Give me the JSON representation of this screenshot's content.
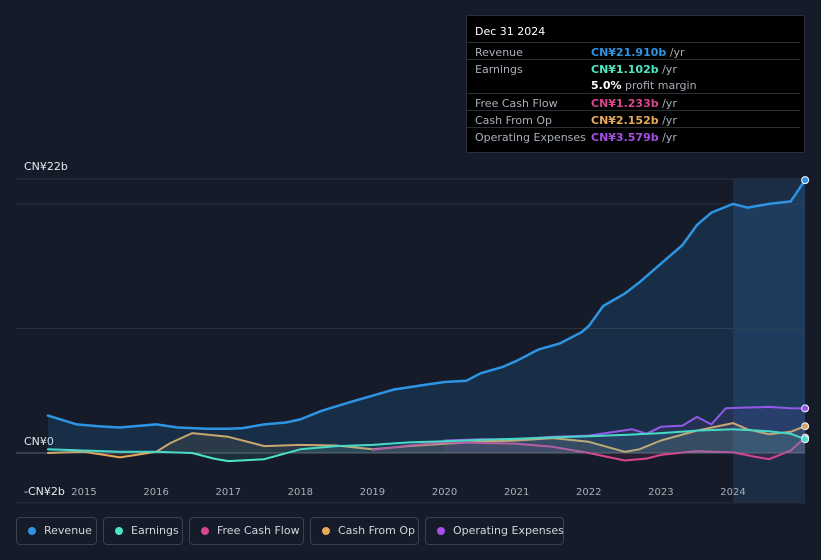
{
  "chart_data": {
    "type": "line",
    "title": "",
    "xlabel": "",
    "ylabel": "",
    "x_start": 2014.5,
    "x_end": 2025.0,
    "ylim": [
      -4,
      22
    ],
    "y_tick_labels": [
      {
        "value": 22,
        "label": "CN¥22b"
      },
      {
        "value": 0,
        "label": "CN¥0"
      },
      {
        "value": -2,
        "label": "-CN¥2b"
      }
    ],
    "x_tick_labels": [
      {
        "value": 2015,
        "label": "2015"
      },
      {
        "value": 2016,
        "label": "2016"
      },
      {
        "value": 2017,
        "label": "2017"
      },
      {
        "value": 2018,
        "label": "2018"
      },
      {
        "value": 2019,
        "label": "2019"
      },
      {
        "value": 2020,
        "label": "2020"
      },
      {
        "value": 2021,
        "label": "2021"
      },
      {
        "value": 2022,
        "label": "2022"
      },
      {
        "value": 2023,
        "label": "2023"
      },
      {
        "value": 2024,
        "label": "2024"
      }
    ],
    "highlight_start": 2024.0,
    "series": [
      {
        "name": "Revenue",
        "color": "#2e94e4",
        "points": [
          [
            2014.5,
            3.0
          ],
          [
            2014.9,
            2.3
          ],
          [
            2015.2,
            2.15
          ],
          [
            2015.5,
            2.05
          ],
          [
            2015.8,
            2.2
          ],
          [
            2016.0,
            2.3
          ],
          [
            2016.3,
            2.05
          ],
          [
            2016.7,
            1.95
          ],
          [
            2017.0,
            1.95
          ],
          [
            2017.2,
            2.0
          ],
          [
            2017.5,
            2.3
          ],
          [
            2017.8,
            2.45
          ],
          [
            2018.0,
            2.7
          ],
          [
            2018.3,
            3.4
          ],
          [
            2018.7,
            4.1
          ],
          [
            2019.0,
            4.6
          ],
          [
            2019.3,
            5.1
          ],
          [
            2019.7,
            5.45
          ],
          [
            2020.0,
            5.7
          ],
          [
            2020.3,
            5.8
          ],
          [
            2020.5,
            6.4
          ],
          [
            2020.8,
            6.9
          ],
          [
            2021.0,
            7.4
          ],
          [
            2021.3,
            8.3
          ],
          [
            2021.6,
            8.8
          ],
          [
            2021.9,
            9.7
          ],
          [
            2022.0,
            10.2
          ],
          [
            2022.2,
            11.8
          ],
          [
            2022.5,
            12.8
          ],
          [
            2022.7,
            13.7
          ],
          [
            2023.0,
            15.2
          ],
          [
            2023.3,
            16.7
          ],
          [
            2023.5,
            18.3
          ],
          [
            2023.7,
            19.3
          ],
          [
            2024.0,
            20.0
          ],
          [
            2024.2,
            19.7
          ],
          [
            2024.5,
            20.0
          ],
          [
            2024.8,
            20.2
          ],
          [
            2025.0,
            21.91
          ]
        ]
      },
      {
        "name": "Earnings",
        "color": "#4de6c3",
        "points": [
          [
            2014.5,
            0.3
          ],
          [
            2015.0,
            0.2
          ],
          [
            2015.5,
            0.1
          ],
          [
            2016.0,
            0.1
          ],
          [
            2016.5,
            0.0
          ],
          [
            2016.8,
            -0.45
          ],
          [
            2017.0,
            -0.65
          ],
          [
            2017.5,
            -0.5
          ],
          [
            2018.0,
            0.3
          ],
          [
            2018.5,
            0.55
          ],
          [
            2019.0,
            0.65
          ],
          [
            2019.5,
            0.85
          ],
          [
            2020.0,
            0.95
          ],
          [
            2020.5,
            1.05
          ],
          [
            2021.0,
            1.15
          ],
          [
            2021.5,
            1.25
          ],
          [
            2022.0,
            1.35
          ],
          [
            2022.5,
            1.45
          ],
          [
            2023.0,
            1.6
          ],
          [
            2023.5,
            1.8
          ],
          [
            2024.0,
            1.9
          ],
          [
            2024.5,
            1.75
          ],
          [
            2024.8,
            1.55
          ],
          [
            2025.0,
            1.102
          ]
        ]
      },
      {
        "name": "Free Cash Flow",
        "color": "#d94690",
        "points": [
          [
            2019.0,
            0.25
          ],
          [
            2019.5,
            0.6
          ],
          [
            2020.0,
            0.85
          ],
          [
            2020.5,
            0.8
          ],
          [
            2021.0,
            0.75
          ],
          [
            2021.5,
            0.5
          ],
          [
            2022.0,
            0.0
          ],
          [
            2022.5,
            -0.6
          ],
          [
            2022.8,
            -0.45
          ],
          [
            2023.0,
            -0.15
          ],
          [
            2023.5,
            0.15
          ],
          [
            2024.0,
            0.05
          ],
          [
            2024.3,
            -0.3
          ],
          [
            2024.5,
            -0.5
          ],
          [
            2024.8,
            0.2
          ],
          [
            2025.0,
            1.233
          ]
        ]
      },
      {
        "name": "Cash From Op",
        "color": "#e8a85a",
        "points": [
          [
            2014.5,
            0.0
          ],
          [
            2015.0,
            0.1
          ],
          [
            2015.5,
            -0.35
          ],
          [
            2016.0,
            0.1
          ],
          [
            2016.2,
            0.8
          ],
          [
            2016.5,
            1.6
          ],
          [
            2017.0,
            1.3
          ],
          [
            2017.5,
            0.55
          ],
          [
            2018.0,
            0.65
          ],
          [
            2018.5,
            0.6
          ],
          [
            2019.0,
            0.3
          ],
          [
            2019.5,
            0.55
          ],
          [
            2020.0,
            0.75
          ],
          [
            2020.5,
            0.9
          ],
          [
            2021.0,
            1.0
          ],
          [
            2021.5,
            1.2
          ],
          [
            2022.0,
            0.9
          ],
          [
            2022.5,
            0.1
          ],
          [
            2022.7,
            0.3
          ],
          [
            2023.0,
            1.0
          ],
          [
            2023.5,
            1.8
          ],
          [
            2024.0,
            2.4
          ],
          [
            2024.2,
            1.9
          ],
          [
            2024.5,
            1.5
          ],
          [
            2024.8,
            1.7
          ],
          [
            2025.0,
            2.152
          ]
        ]
      },
      {
        "name": "Operating Expenses",
        "color": "#a64ee6",
        "points": [
          [
            2020.0,
            1.0
          ],
          [
            2020.5,
            1.1
          ],
          [
            2021.0,
            1.1
          ],
          [
            2021.5,
            1.3
          ],
          [
            2022.0,
            1.4
          ],
          [
            2022.3,
            1.65
          ],
          [
            2022.6,
            1.9
          ],
          [
            2022.8,
            1.55
          ],
          [
            2023.0,
            2.1
          ],
          [
            2023.3,
            2.2
          ],
          [
            2023.5,
            2.9
          ],
          [
            2023.7,
            2.3
          ],
          [
            2023.9,
            3.6
          ],
          [
            2024.2,
            3.65
          ],
          [
            2024.5,
            3.7
          ],
          [
            2024.8,
            3.6
          ],
          [
            2025.0,
            3.579
          ]
        ]
      }
    ]
  },
  "tooltip": {
    "date": "Dec 31 2024",
    "rows": [
      {
        "label": "Revenue",
        "value": "CN¥21.910b",
        "unit": " /yr",
        "color": "#2e94e4"
      },
      {
        "label": "Earnings",
        "value": "CN¥1.102b",
        "unit": " /yr",
        "color": "#4de6c3"
      },
      {
        "label": "",
        "value": "5.0%",
        "unit": " profit margin",
        "color": "#ffffff"
      },
      {
        "label": "Free Cash Flow",
        "value": "CN¥1.233b",
        "unit": " /yr",
        "color": "#d94690"
      },
      {
        "label": "Cash From Op",
        "value": "CN¥2.152b",
        "unit": " /yr",
        "color": "#e8a85a"
      },
      {
        "label": "Operating Expenses",
        "value": "CN¥3.579b",
        "unit": " /yr",
        "color": "#a64ee6"
      }
    ]
  },
  "legend": [
    {
      "label": "Revenue",
      "color": "#2e94e4"
    },
    {
      "label": "Earnings",
      "color": "#4de6c3"
    },
    {
      "label": "Free Cash Flow",
      "color": "#d94690"
    },
    {
      "label": "Cash From Op",
      "color": "#e8a85a"
    },
    {
      "label": "Operating Expenses",
      "color": "#a64ee6"
    }
  ]
}
